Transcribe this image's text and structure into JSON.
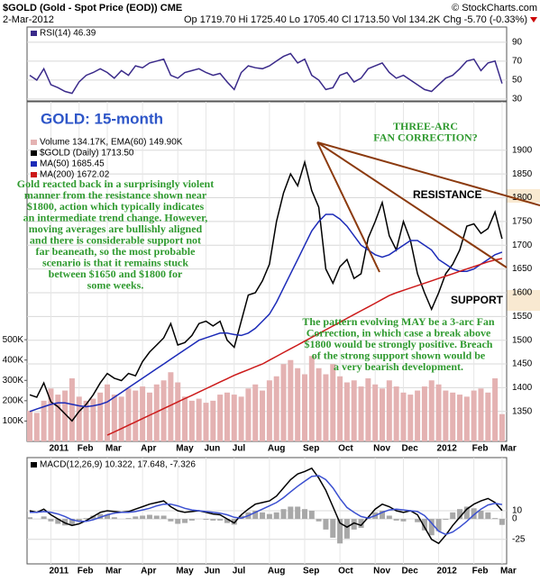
{
  "header": {
    "title": "$GOLD (Gold - Spot Price (EOD)) CME",
    "copyright": "© StockCharts.com",
    "date": "2-Mar-2012",
    "stats": "Op 1719.70 Hi 1725.40 Lo 1705.40 Cl 1713.50 Vol 134.2K Chg -5.70 (-0.33%)"
  },
  "chart_data": [
    {
      "type": "line",
      "ylim": [
        28,
        106
      ],
      "yticks": [
        30,
        50,
        70,
        90
      ],
      "grid": true,
      "series": [
        {
          "name": "RSI(14) 46.39",
          "color": "#3a2a8a",
          "values": [
            55,
            50,
            62,
            45,
            42,
            38,
            36,
            48,
            55,
            58,
            62,
            58,
            52,
            60,
            55,
            65,
            63,
            68,
            70,
            72,
            55,
            52,
            58,
            60,
            62,
            58,
            55,
            57,
            48,
            40,
            58,
            65,
            63,
            62,
            65,
            70,
            75,
            78,
            68,
            72,
            55,
            50,
            40,
            42,
            55,
            58,
            48,
            52,
            62,
            65,
            68,
            58,
            52,
            55,
            50,
            45,
            40,
            38,
            45,
            52,
            55,
            62,
            70,
            72,
            60,
            68,
            70,
            46.39
          ]
        }
      ]
    },
    {
      "type": "line",
      "title": "GOLD: 15-month",
      "categories": [
        null,
        null,
        null,
        "2011",
        null,
        null,
        null,
        "Feb",
        null,
        null,
        null,
        "Mar",
        null,
        null,
        null,
        null,
        "Apr",
        null,
        null,
        null,
        null,
        "May",
        null,
        null,
        null,
        "Jun",
        null,
        null,
        null,
        "Jul",
        null,
        null,
        null,
        null,
        "Aug",
        null,
        null,
        null,
        null,
        "Sep",
        null,
        null,
        null,
        null,
        "Oct",
        null,
        null,
        null,
        null,
        "Nov",
        null,
        null,
        null,
        "Dec",
        null,
        null,
        null,
        null,
        "2012",
        null,
        null,
        null,
        null,
        "Feb",
        null,
        null,
        null,
        "Mar"
      ],
      "ylim": [
        1287,
        2002
      ],
      "yticks": [
        1350,
        1400,
        1450,
        1500,
        1550,
        1600,
        1650,
        1700,
        1750,
        1800,
        1850,
        1900
      ],
      "grid": true,
      "y2lim": [
        0,
        1670000
      ],
      "y2ticks": [
        {
          "value": 100000,
          "label": "100K"
        },
        {
          "value": 200000,
          "label": "200K"
        },
        {
          "value": 300000,
          "label": "300K"
        },
        {
          "value": 400000,
          "label": "400K"
        },
        {
          "value": 500000,
          "label": "500K"
        }
      ],
      "series": [
        {
          "name": "Volume 134.17K, EMA(60) 149.90K",
          "type": "bar",
          "axis": "y2",
          "color": "#e4b2b2",
          "values": [
            150000,
            140000,
            200000,
            260000,
            230000,
            250000,
            310000,
            220000,
            200000,
            210000,
            240000,
            280000,
            230000,
            220000,
            260000,
            250000,
            270000,
            240000,
            280000,
            300000,
            340000,
            290000,
            220000,
            200000,
            210000,
            190000,
            200000,
            230000,
            240000,
            230000,
            220000,
            260000,
            280000,
            250000,
            300000,
            320000,
            380000,
            400000,
            360000,
            330000,
            420000,
            360000,
            330000,
            380000,
            320000,
            290000,
            300000,
            270000,
            310000,
            280000,
            260000,
            300000,
            270000,
            240000,
            230000,
            250000,
            270000,
            300000,
            280000,
            250000,
            240000,
            230000,
            220000,
            250000,
            260000,
            240000,
            310000,
            134170
          ]
        },
        {
          "name": "$GOLD (Daily) 1713.50",
          "color": "#000000",
          "values": [
            1385,
            1380,
            1410,
            1370,
            1360,
            1345,
            1330,
            1350,
            1365,
            1385,
            1410,
            1430,
            1420,
            1415,
            1430,
            1425,
            1455,
            1475,
            1490,
            1505,
            1535,
            1490,
            1495,
            1510,
            1535,
            1540,
            1530,
            1540,
            1500,
            1485,
            1540,
            1595,
            1600,
            1625,
            1660,
            1750,
            1810,
            1850,
            1825,
            1875,
            1815,
            1780,
            1650,
            1620,
            1655,
            1670,
            1630,
            1640,
            1715,
            1750,
            1790,
            1720,
            1690,
            1750,
            1710,
            1640,
            1600,
            1565,
            1600,
            1640,
            1660,
            1690,
            1740,
            1745,
            1725,
            1735,
            1770,
            1713.5
          ]
        },
        {
          "name": "MA(50) 1685.45",
          "color": "#1c2bb8",
          "values": [
            1350,
            1355,
            1360,
            1365,
            1368,
            1368,
            1365,
            1362,
            1360,
            1362,
            1365,
            1370,
            1380,
            1390,
            1400,
            1410,
            1420,
            1430,
            1440,
            1450,
            1460,
            1470,
            1480,
            1490,
            1500,
            1505,
            1510,
            1515,
            1515,
            1512,
            1510,
            1515,
            1525,
            1540,
            1555,
            1580,
            1610,
            1640,
            1670,
            1700,
            1730,
            1750,
            1765,
            1765,
            1755,
            1740,
            1720,
            1700,
            1690,
            1680,
            1675,
            1680,
            1690,
            1700,
            1710,
            1710,
            1700,
            1690,
            1670,
            1660,
            1650,
            1645,
            1645,
            1650,
            1660,
            1670,
            1680,
            1685.45
          ]
        },
        {
          "name": "MA(200) 1672.02",
          "color": "#cc1a1a",
          "values": [
            null,
            null,
            null,
            null,
            null,
            null,
            null,
            null,
            null,
            null,
            null,
            1300,
            1307,
            1314,
            1321,
            1328,
            1335,
            1342,
            1349,
            1356,
            1363,
            1370,
            1377,
            1384,
            1391,
            1398,
            1405,
            1412,
            1419,
            1426,
            1432,
            1438,
            1444,
            1450,
            1458,
            1466,
            1474,
            1482,
            1490,
            1498,
            1506,
            1514,
            1522,
            1530,
            1538,
            1546,
            1554,
            1562,
            1570,
            1578,
            1586,
            1594,
            1600,
            1605,
            1610,
            1615,
            1620,
            1625,
            1630,
            1635,
            1640,
            1645,
            1650,
            1655,
            1660,
            1665,
            1669,
            1672.02
          ]
        }
      ],
      "annotations": [
        {
          "lines": [
            "THREE-ARC",
            "FAN CORRECTION?"
          ]
        },
        {
          "lines": [
            "Gold reacted back in a surprisingly violent",
            "manner from the resistance shown near",
            "$1800, action which typically indicates",
            "an intermediate trend change. However,",
            "moving averages are bullishly aligned",
            "and there is considerable support not",
            "far beaneath, so the most probable",
            "scenario is that it remains stuck",
            "between $1650 and $1800 for",
            "some weeks."
          ]
        },
        {
          "lines": [
            "RESISTANCE"
          ]
        },
        {
          "lines": [
            "SUPPORT"
          ]
        },
        {
          "lines": [
            "The pattern evolving MAY be a 3-arc Fan",
            "Correction, in which case a break above",
            "$1800 would be strongly positive. Breach",
            "of the strong support shown would be",
            "a very bearish development."
          ]
        }
      ]
    },
    {
      "type": "line",
      "categories": [
        null,
        null,
        null,
        "2011",
        null,
        null,
        null,
        "Feb",
        null,
        null,
        null,
        "Mar",
        null,
        null,
        null,
        null,
        "Apr",
        null,
        null,
        null,
        null,
        "May",
        null,
        null,
        null,
        "Jun",
        null,
        null,
        null,
        "Jul",
        null,
        null,
        null,
        null,
        "Aug",
        null,
        null,
        null,
        null,
        "Sep",
        null,
        null,
        null,
        null,
        "Oct",
        null,
        null,
        null,
        null,
        "Nov",
        null,
        null,
        null,
        "Dec",
        null,
        null,
        null,
        null,
        "2012",
        null,
        null,
        null,
        null,
        "Feb",
        null,
        null,
        null,
        "Mar"
      ],
      "ylim": [
        -55,
        75
      ],
      "yticks": [
        10,
        0,
        -25
      ],
      "grid": true,
      "series": [
        {
          "type": "bar",
          "color": "#a8a8a8",
          "values": [
            2,
            0,
            3,
            -3,
            -6,
            -8,
            -7,
            -3,
            1,
            4,
            6,
            5,
            2,
            0,
            1,
            3,
            4,
            5,
            4,
            4,
            -3,
            -6,
            -5,
            -2,
            0,
            -1,
            -2,
            -2,
            -5,
            -7,
            4,
            8,
            10,
            8,
            6,
            8,
            12,
            15,
            15,
            12,
            10,
            -3,
            -13,
            -23,
            -30,
            -24,
            -13,
            -11,
            1,
            8,
            10,
            4,
            -2,
            -3,
            0,
            -4,
            -14,
            -20,
            -15,
            -1,
            8,
            12,
            15,
            13,
            10,
            8,
            1,
            -7.326
          ]
        },
        {
          "name": "MACD(12,26,9) 10.322, 17.648, -7.326",
          "color": "#000000",
          "values": [
            10,
            8,
            12,
            5,
            0,
            -5,
            -8,
            -6,
            -2,
            3,
            8,
            10,
            9,
            8,
            9,
            12,
            15,
            18,
            20,
            22,
            15,
            10,
            8,
            9,
            10,
            8,
            6,
            5,
            0,
            -5,
            5,
            12,
            18,
            20,
            22,
            28,
            38,
            48,
            55,
            58,
            62,
            50,
            35,
            15,
            -5,
            -10,
            -5,
            -8,
            2,
            12,
            18,
            15,
            10,
            8,
            10,
            5,
            -10,
            -25,
            -30,
            -20,
            -8,
            2,
            12,
            18,
            22,
            25,
            20,
            10.322
          ]
        },
        {
          "color": "#3a4fd0",
          "values": [
            8,
            8,
            9,
            8,
            6,
            3,
            -1,
            -3,
            -3,
            -1,
            2,
            5,
            7,
            8,
            8,
            9,
            11,
            13,
            16,
            18,
            18,
            16,
            13,
            11,
            10,
            9,
            8,
            7,
            5,
            2,
            1,
            4,
            8,
            12,
            16,
            20,
            26,
            33,
            40,
            46,
            52,
            53,
            48,
            38,
            25,
            14,
            8,
            3,
            1,
            4,
            8,
            11,
            12,
            11,
            10,
            9,
            4,
            -5,
            -15,
            -19,
            -16,
            -10,
            -3,
            5,
            12,
            17,
            19,
            17.648
          ]
        }
      ]
    }
  ]
}
